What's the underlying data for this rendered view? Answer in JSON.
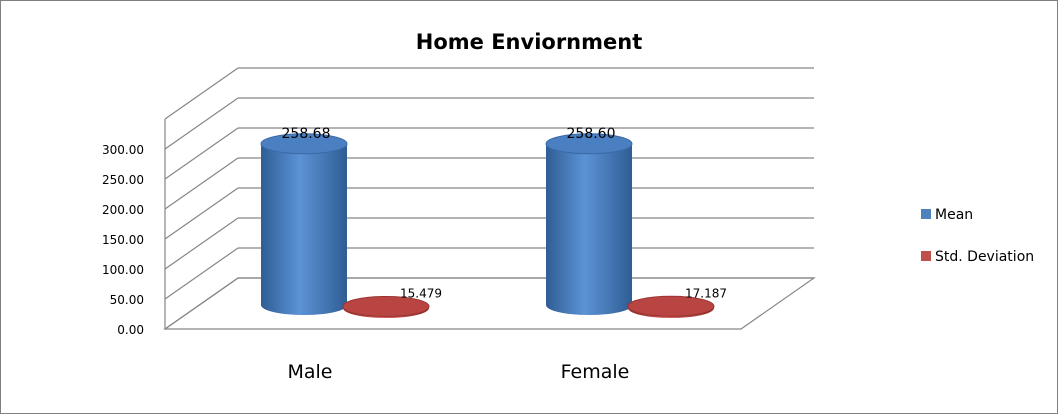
{
  "chart_data": {
    "type": "bar",
    "title": "Home Enviornment",
    "categories": [
      "Male",
      "Female"
    ],
    "series": [
      {
        "name": "Mean",
        "values": [
          258.68,
          258.6
        ],
        "labels": [
          "258.68",
          "258.60"
        ],
        "color": "#4f81bd"
      },
      {
        "name": "Std. Deviation",
        "values": [
          15.479,
          17.187
        ],
        "labels": [
          "15.479",
          "17.187"
        ],
        "color": "#c0504d"
      }
    ],
    "yticks": [
      "0.00",
      "50.00",
      "100.00",
      "150.00",
      "200.00",
      "250.00",
      "300.00"
    ],
    "ylim": [
      0,
      300
    ],
    "legend_position": "right",
    "grid": true
  }
}
